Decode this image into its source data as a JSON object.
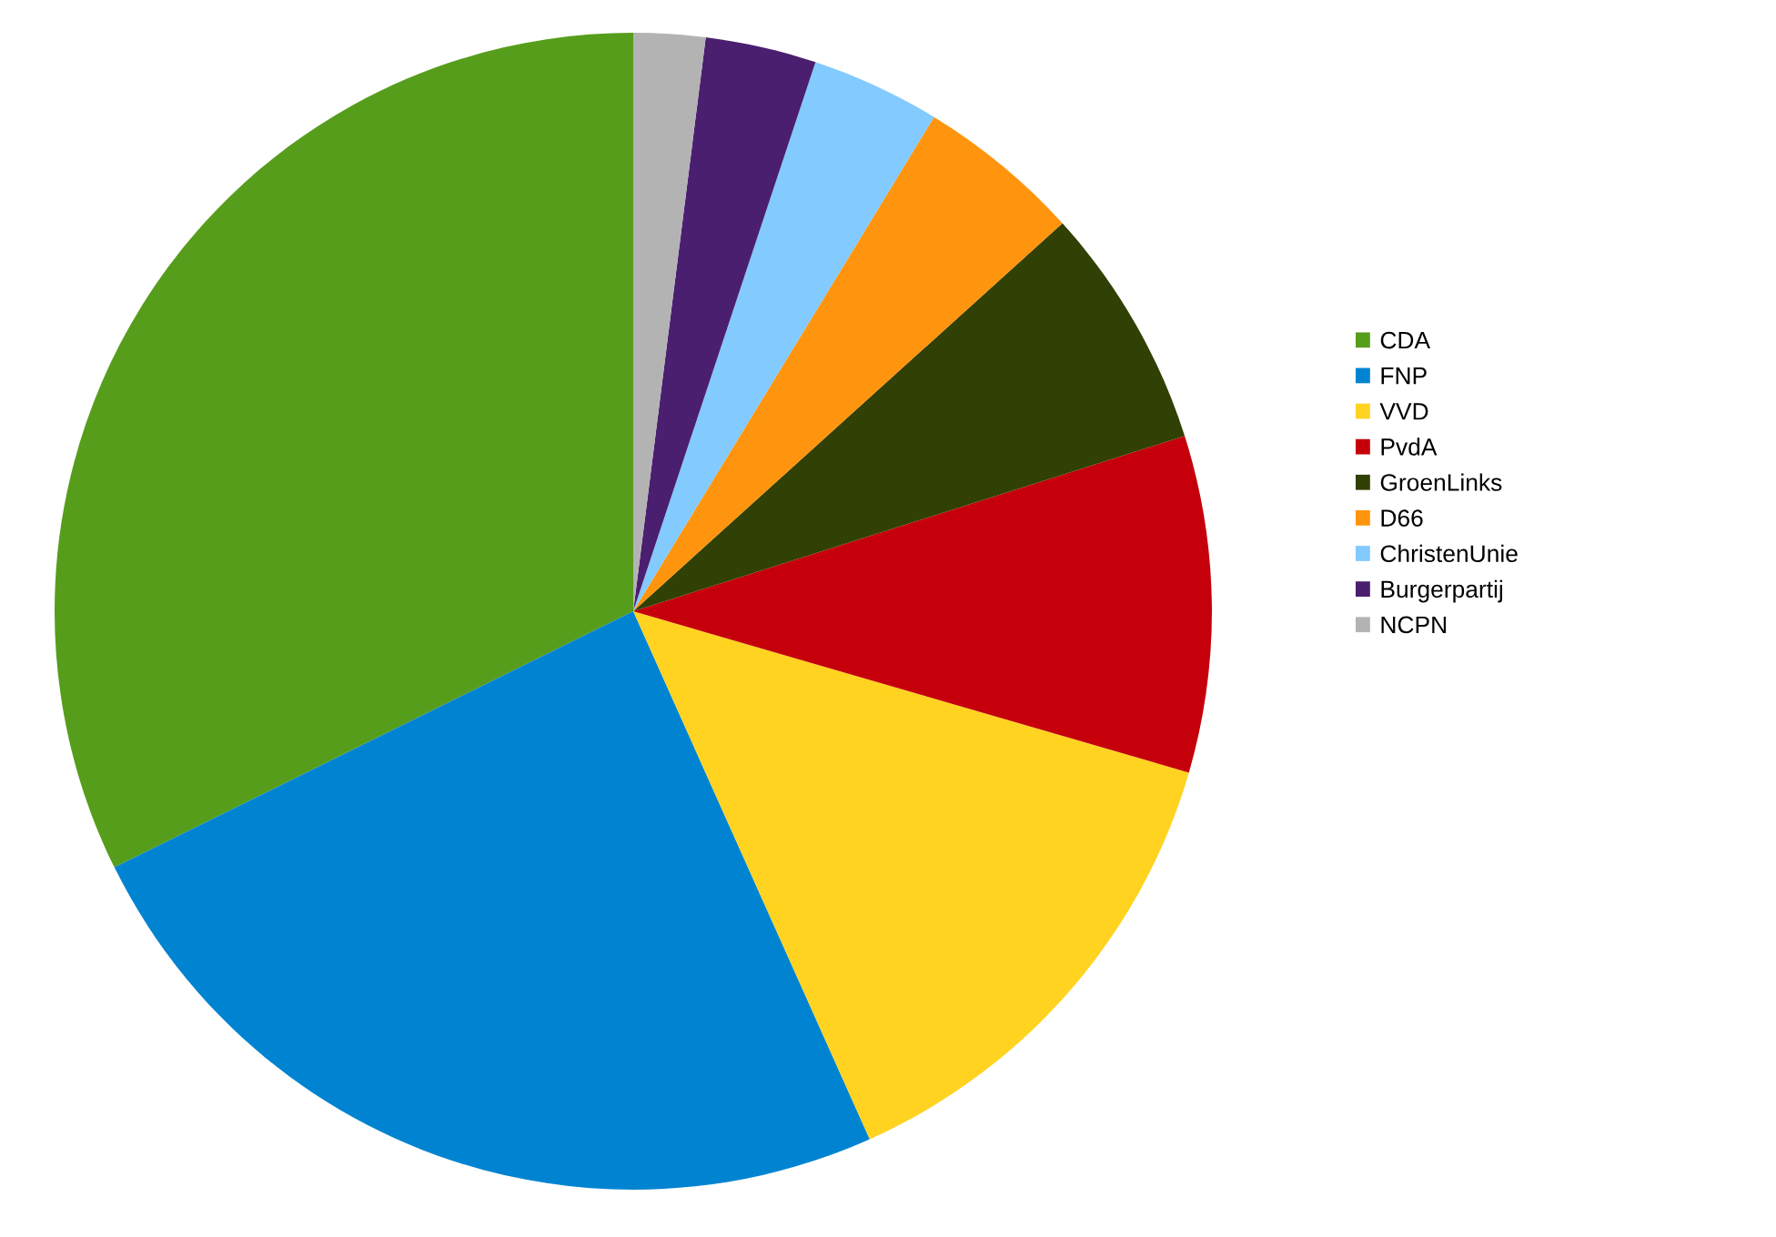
{
  "chart_data": {
    "type": "pie",
    "categories": [
      "CDA",
      "FNP",
      "VVD",
      "PvdA",
      "GroenLinks",
      "D66",
      "ChristenUnie",
      "Burgerpartij",
      "NCPN"
    ],
    "values": [
      32.3,
      24.4,
      13.8,
      9.4,
      6.8,
      4.6,
      3.6,
      3.1,
      2.0
    ],
    "colors": [
      "#579d1c",
      "#0084d1",
      "#ffd320",
      "#c5000b",
      "#314004",
      "#ff950e",
      "#83caff",
      "#4b1f6f",
      "#b3b3b3"
    ],
    "legend": "right"
  }
}
